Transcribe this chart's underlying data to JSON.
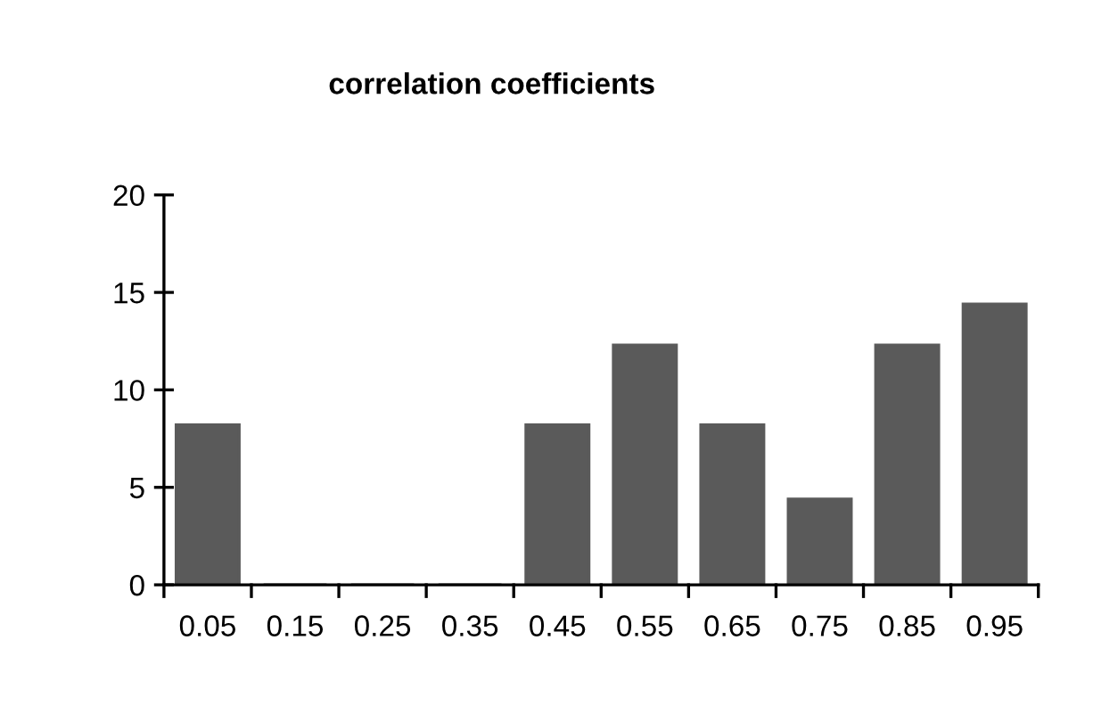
{
  "chart_data": {
    "type": "bar",
    "title": "correlation coefficients",
    "categories": [
      "0.05",
      "0.15",
      "0.25",
      "0.35",
      "0.45",
      "0.55",
      "0.65",
      "0.75",
      "0.85",
      "0.95"
    ],
    "values": [
      8.2,
      0,
      0,
      0,
      8.2,
      12.3,
      8.2,
      4.4,
      12.3,
      14.4
    ],
    "color": "#5a5a5a",
    "ylim": [
      0,
      20
    ],
    "yticks": [
      0,
      5,
      10,
      15,
      20
    ],
    "grid": false,
    "legend": false
  }
}
